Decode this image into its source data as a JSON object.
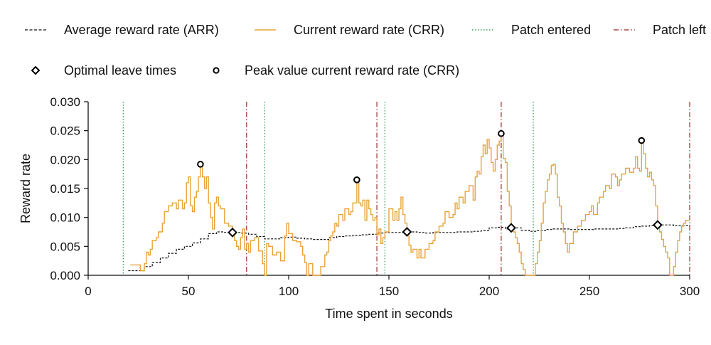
{
  "chart_data": {
    "type": "line",
    "xlabel": "Time spent in seconds",
    "ylabel": "Reward rate",
    "xlim": [
      0,
      300
    ],
    "ylim": [
      0,
      0.03
    ],
    "xticks": [
      0,
      50,
      100,
      150,
      200,
      250,
      300
    ],
    "xtick_labels": [
      "0",
      "50",
      "100",
      "150",
      "200",
      "250",
      "300"
    ],
    "yticks": [
      0,
      0.005,
      0.01,
      0.015,
      0.02,
      0.025,
      0.03
    ],
    "ytick_labels": [
      "0.000",
      "0.005",
      "0.010",
      "0.015",
      "0.020",
      "0.025",
      "0.030"
    ],
    "grid": false,
    "legend_position": "top",
    "legend": [
      {
        "key": "arr",
        "label": "Average reward rate (ARR)"
      },
      {
        "key": "crr",
        "label": "Current reward rate (CRR)"
      },
      {
        "key": "entered",
        "label": "Patch entered"
      },
      {
        "key": "left",
        "label": "Patch left"
      },
      {
        "key": "optimal",
        "label": "Optimal leave times"
      },
      {
        "key": "peak",
        "label": "Peak value current reward rate (CRR)"
      }
    ],
    "colors": {
      "arr": "#111111",
      "crr": "#E8A33A",
      "entered": "#3E9B55",
      "left": "#A84A4A",
      "marker_edge": "#000000",
      "marker_fill": "#ffffff"
    },
    "series": [
      {
        "key": "arr",
        "name": "Average reward rate (ARR)",
        "points": [
          [
            20,
            0.0008
          ],
          [
            26,
            0.0008
          ],
          [
            28,
            0.0015
          ],
          [
            32,
            0.0022
          ],
          [
            36,
            0.003
          ],
          [
            40,
            0.0038
          ],
          [
            44,
            0.0045
          ],
          [
            48,
            0.005
          ],
          [
            52,
            0.0056
          ],
          [
            56,
            0.0063
          ],
          [
            60,
            0.0072
          ],
          [
            64,
            0.0075
          ],
          [
            68,
            0.0074
          ],
          [
            72,
            0.0074
          ],
          [
            76,
            0.0073
          ],
          [
            80,
            0.0071
          ],
          [
            84,
            0.0067
          ],
          [
            88,
            0.0063
          ],
          [
            92,
            0.0063
          ],
          [
            96,
            0.0065
          ],
          [
            100,
            0.0066
          ],
          [
            104,
            0.0064
          ],
          [
            108,
            0.0063
          ],
          [
            112,
            0.0062
          ],
          [
            116,
            0.0062
          ],
          [
            120,
            0.0065
          ],
          [
            124,
            0.0067
          ],
          [
            128,
            0.0068
          ],
          [
            132,
            0.0069
          ],
          [
            136,
            0.007
          ],
          [
            140,
            0.0071
          ],
          [
            144,
            0.0073
          ],
          [
            148,
            0.0074
          ],
          [
            152,
            0.0074
          ],
          [
            156,
            0.0074
          ],
          [
            160,
            0.0075
          ],
          [
            164,
            0.0074
          ],
          [
            168,
            0.0073
          ],
          [
            172,
            0.0074
          ],
          [
            176,
            0.0074
          ],
          [
            180,
            0.0074
          ],
          [
            184,
            0.0075
          ],
          [
            188,
            0.0075
          ],
          [
            192,
            0.0076
          ],
          [
            196,
            0.0077
          ],
          [
            200,
            0.0082
          ],
          [
            204,
            0.0083
          ],
          [
            208,
            0.008
          ],
          [
            212,
            0.0082
          ],
          [
            216,
            0.0078
          ],
          [
            220,
            0.0076
          ],
          [
            224,
            0.0077
          ],
          [
            228,
            0.0079
          ],
          [
            232,
            0.008
          ],
          [
            236,
            0.008
          ],
          [
            240,
            0.0079
          ],
          [
            244,
            0.0079
          ],
          [
            248,
            0.0079
          ],
          [
            252,
            0.008
          ],
          [
            256,
            0.008
          ],
          [
            260,
            0.008
          ],
          [
            264,
            0.0081
          ],
          [
            268,
            0.0082
          ],
          [
            272,
            0.0084
          ],
          [
            276,
            0.0085
          ],
          [
            280,
            0.0086
          ],
          [
            284,
            0.0087
          ],
          [
            288,
            0.0087
          ],
          [
            292,
            0.0086
          ],
          [
            296,
            0.0086
          ],
          [
            300,
            0.0087
          ]
        ]
      },
      {
        "key": "crr",
        "name": "Current reward rate (CRR)",
        "points": [
          [
            21,
            0.0018
          ],
          [
            25,
            0.0018
          ],
          [
            26,
            0.0008
          ],
          [
            28,
            0.002
          ],
          [
            29,
            0.004
          ],
          [
            30,
            0.0035
          ],
          [
            31,
            0.0045
          ],
          [
            32,
            0.006
          ],
          [
            34,
            0.0065
          ],
          [
            35,
            0.0075
          ],
          [
            37,
            0.009
          ],
          [
            38,
            0.011
          ],
          [
            40,
            0.012
          ],
          [
            42,
            0.0125
          ],
          [
            44,
            0.0115
          ],
          [
            45,
            0.013
          ],
          [
            47,
            0.0115
          ],
          [
            48,
            0.0125
          ],
          [
            49,
            0.016
          ],
          [
            50,
            0.017
          ],
          [
            51,
            0.012
          ],
          [
            52,
            0.011
          ],
          [
            53,
            0.0135
          ],
          [
            54,
            0.0145
          ],
          [
            55,
            0.017
          ],
          [
            56,
            0.0192
          ],
          [
            57,
            0.017
          ],
          [
            58,
            0.015
          ],
          [
            59,
            0.017
          ],
          [
            60,
            0.0125
          ],
          [
            61,
            0.01
          ],
          [
            62,
            0.008
          ],
          [
            63,
            0.0125
          ],
          [
            64,
            0.0135
          ],
          [
            65,
            0.012
          ],
          [
            66,
            0.0115
          ],
          [
            68,
            0.009
          ],
          [
            70,
            0.0085
          ],
          [
            72,
            0.0074
          ],
          [
            73,
            0.006
          ],
          [
            74,
            0.005
          ],
          [
            75,
            0.0045
          ],
          [
            76,
            0.0065
          ],
          [
            77,
            0.008
          ],
          [
            78,
            0.0045
          ],
          [
            79,
            0.0055
          ],
          [
            80,
            0.004
          ],
          [
            81,
            0.006
          ],
          [
            83,
            0.0065
          ],
          [
            85,
            0.0042
          ],
          [
            87,
            0.002
          ],
          [
            88,
            0.0
          ],
          [
            89,
            0.0055
          ],
          [
            90,
            0.005
          ],
          [
            92,
            0.0035
          ],
          [
            94,
            0.004
          ],
          [
            96,
            0.0025
          ],
          [
            98,
            0.0068
          ],
          [
            99,
            0.009
          ],
          [
            100,
            0.0072
          ],
          [
            102,
            0.006
          ],
          [
            104,
            0.0058
          ],
          [
            106,
            0.005
          ],
          [
            107,
            0.0035
          ],
          [
            108,
            0.0022
          ],
          [
            109,
            0.0
          ],
          [
            110,
            0.002
          ],
          [
            112,
            0.0
          ],
          [
            114,
            0.0
          ],
          [
            116,
            0.0015
          ],
          [
            118,
            0.0035
          ],
          [
            119,
            0.004
          ],
          [
            120,
            0.006
          ],
          [
            121,
            0.0068
          ],
          [
            122,
            0.0075
          ],
          [
            123,
            0.009
          ],
          [
            124,
            0.0085
          ],
          [
            125,
            0.0105
          ],
          [
            127,
            0.0095
          ],
          [
            128,
            0.0115
          ],
          [
            130,
            0.0105
          ],
          [
            131,
            0.011
          ],
          [
            132,
            0.0125
          ],
          [
            133,
            0.0125
          ],
          [
            134,
            0.0165
          ],
          [
            135,
            0.0125
          ],
          [
            136,
            0.012
          ],
          [
            137,
            0.013
          ],
          [
            138,
            0.0095
          ],
          [
            139,
            0.013
          ],
          [
            140,
            0.0115
          ],
          [
            141,
            0.0105
          ],
          [
            142,
            0.0095
          ],
          [
            143,
            0.01
          ],
          [
            144,
            0.007
          ],
          [
            145,
            0.008
          ],
          [
            146,
            0.0055
          ],
          [
            147,
            0.0065
          ],
          [
            148,
            0.0075
          ],
          [
            150,
            0.0115
          ],
          [
            152,
            0.0095
          ],
          [
            153,
            0.011
          ],
          [
            154,
            0.0095
          ],
          [
            155,
            0.0115
          ],
          [
            156,
            0.0135
          ],
          [
            157,
            0.0105
          ],
          [
            158,
            0.009
          ],
          [
            159,
            0.0075
          ],
          [
            160,
            0.0052
          ],
          [
            161,
            0.004
          ],
          [
            162,
            0.0045
          ],
          [
            164,
            0.003
          ],
          [
            165,
            0.0045
          ],
          [
            166,
            0.003
          ],
          [
            168,
            0.0045
          ],
          [
            170,
            0.0055
          ],
          [
            172,
            0.006
          ],
          [
            173,
            0.0075
          ],
          [
            175,
            0.0085
          ],
          [
            177,
            0.009
          ],
          [
            178,
            0.011
          ],
          [
            180,
            0.01
          ],
          [
            182,
            0.0105
          ],
          [
            183,
            0.0125
          ],
          [
            184,
            0.0115
          ],
          [
            185,
            0.0135
          ],
          [
            187,
            0.0125
          ],
          [
            188,
            0.0145
          ],
          [
            190,
            0.0155
          ],
          [
            192,
            0.013
          ],
          [
            193,
            0.017
          ],
          [
            194,
            0.018
          ],
          [
            195,
            0.0175
          ],
          [
            196,
            0.0205
          ],
          [
            197,
            0.0225
          ],
          [
            198,
            0.021
          ],
          [
            199,
            0.0235
          ],
          [
            200,
            0.022
          ],
          [
            201,
            0.0195
          ],
          [
            202,
            0.018
          ],
          [
            203,
            0.02
          ],
          [
            204,
            0.0225
          ],
          [
            205,
            0.0232
          ],
          [
            206,
            0.0245
          ],
          [
            207,
            0.0202
          ],
          [
            208,
            0.0195
          ],
          [
            209,
            0.0145
          ],
          [
            210,
            0.012
          ],
          [
            211,
            0.0082
          ],
          [
            212,
            0.0075
          ],
          [
            213,
            0.0065
          ],
          [
            214,
            0.0055
          ],
          [
            215,
            0.004
          ],
          [
            216,
            0.002
          ],
          [
            217,
            0.001
          ],
          [
            218,
            0.0
          ],
          [
            220,
            0.0
          ],
          [
            222,
            0.0
          ],
          [
            223,
            0.002
          ],
          [
            224,
            0.004
          ],
          [
            225,
            0.006
          ],
          [
            226,
            0.009
          ],
          [
            227,
            0.0125
          ],
          [
            228,
            0.0145
          ],
          [
            229,
            0.0165
          ],
          [
            230,
            0.0175
          ],
          [
            231,
            0.019
          ],
          [
            232,
            0.0192
          ],
          [
            233,
            0.0175
          ],
          [
            234,
            0.0135
          ],
          [
            235,
            0.012
          ],
          [
            236,
            0.009
          ],
          [
            237,
            0.0075
          ],
          [
            238,
            0.0055
          ],
          [
            239,
            0.004
          ],
          [
            240,
            0.0055
          ],
          [
            242,
            0.0075
          ],
          [
            244,
            0.0085
          ],
          [
            246,
            0.0095
          ],
          [
            248,
            0.0105
          ],
          [
            250,
            0.011
          ],
          [
            251,
            0.012
          ],
          [
            252,
            0.0105
          ],
          [
            254,
            0.0125
          ],
          [
            255,
            0.0135
          ],
          [
            257,
            0.0145
          ],
          [
            258,
            0.0155
          ],
          [
            260,
            0.015
          ],
          [
            261,
            0.0175
          ],
          [
            263,
            0.017
          ],
          [
            264,
            0.0155
          ],
          [
            265,
            0.0165
          ],
          [
            266,
            0.0175
          ],
          [
            268,
            0.0185
          ],
          [
            270,
            0.0178
          ],
          [
            272,
            0.0185
          ],
          [
            273,
            0.0205
          ],
          [
            274,
            0.0185
          ],
          [
            275,
            0.018
          ],
          [
            276,
            0.0233
          ],
          [
            277,
            0.021
          ],
          [
            278,
            0.0185
          ],
          [
            279,
            0.017
          ],
          [
            280,
            0.0178
          ],
          [
            281,
            0.0165
          ],
          [
            282,
            0.0155
          ],
          [
            283,
            0.012
          ],
          [
            284,
            0.0087
          ],
          [
            285,
            0.0075
          ],
          [
            286,
            0.0062
          ],
          [
            287,
            0.005
          ],
          [
            288,
            0.004
          ],
          [
            289,
            0.003
          ],
          [
            290,
            0.0
          ],
          [
            291,
            0.0
          ],
          [
            292,
            0.0015
          ],
          [
            293,
            0.004
          ],
          [
            294,
            0.006
          ],
          [
            295,
            0.0075
          ],
          [
            296,
            0.0085
          ],
          [
            297,
            0.009
          ],
          [
            298,
            0.0095
          ],
          [
            300,
            0.0095
          ]
        ]
      }
    ],
    "patch_entered": [
      17.5,
      88,
      148,
      222
    ],
    "patch_left": [
      79,
      144,
      206,
      300
    ],
    "optimal_leave_times": [
      [
        72,
        0.0074
      ],
      [
        159,
        0.0075
      ],
      [
        211,
        0.0082
      ],
      [
        284,
        0.0087
      ]
    ],
    "peak_values": [
      [
        56,
        0.0192
      ],
      [
        134,
        0.0165
      ],
      [
        206,
        0.0245
      ],
      [
        276,
        0.0233
      ]
    ]
  }
}
